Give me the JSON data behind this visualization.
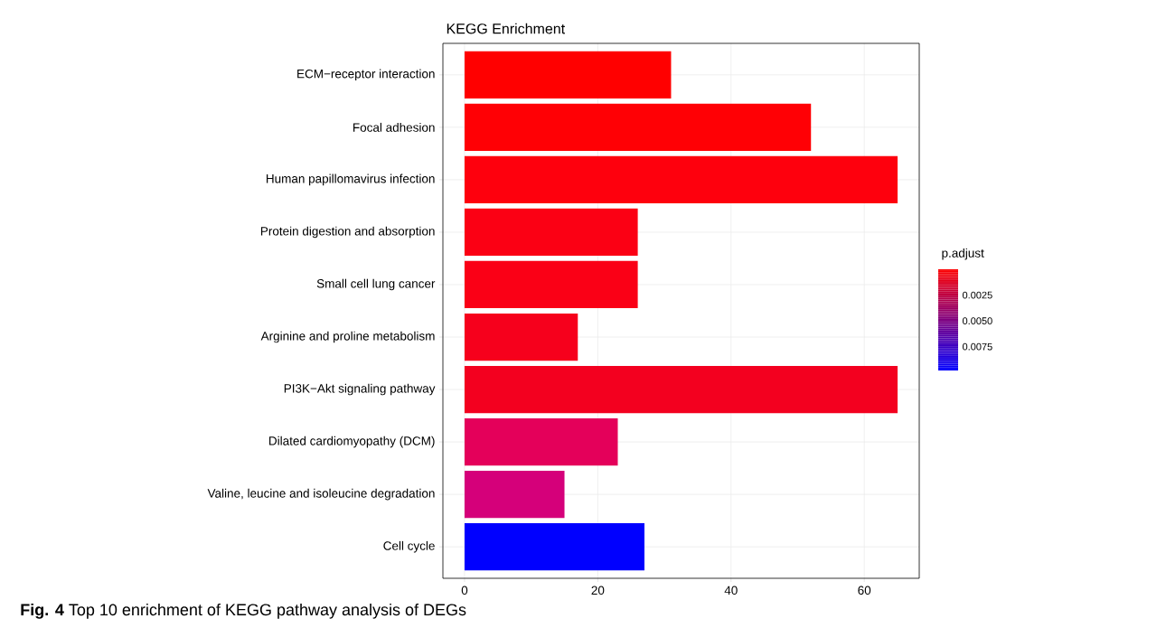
{
  "chart_data": {
    "type": "bar",
    "orientation": "horizontal",
    "title": "KEGG Enrichment",
    "categories": [
      "ECM−receptor interaction",
      "Focal adhesion",
      "Human papillomavirus infection",
      "Protein digestion and absorption",
      "Small cell lung cancer",
      "Arginine and proline metabolism",
      "PI3K−Akt signaling pathway",
      "Dilated cardiomyopathy (DCM)",
      "Valine, leucine and isoleucine degradation",
      "Cell cycle"
    ],
    "values": [
      31,
      52,
      65,
      26,
      26,
      17,
      65,
      23,
      15,
      27
    ],
    "colors": [
      "#ff0000",
      "#ff0005",
      "#fe000d",
      "#fb0014",
      "#fa0016",
      "#f6001c",
      "#f3001f",
      "#e4005a",
      "#d5007a",
      "#0000ff"
    ],
    "xlim": [
      -3.25,
      68.25
    ],
    "xticks": [
      0,
      20,
      40,
      60
    ],
    "grid": true,
    "clabel": "p.adjust",
    "clim": [
      0,
      0.0098
    ],
    "cticks": [
      {
        "value": 0.0025,
        "label": "0.0025"
      },
      {
        "value": 0.005,
        "label": "0.0050"
      },
      {
        "value": 0.0075,
        "label": "0.0075"
      }
    ],
    "annotations": [
      "**Fig. 4** Top 10 enrichment of KEGG pathway analysis of DEGs"
    ]
  }
}
